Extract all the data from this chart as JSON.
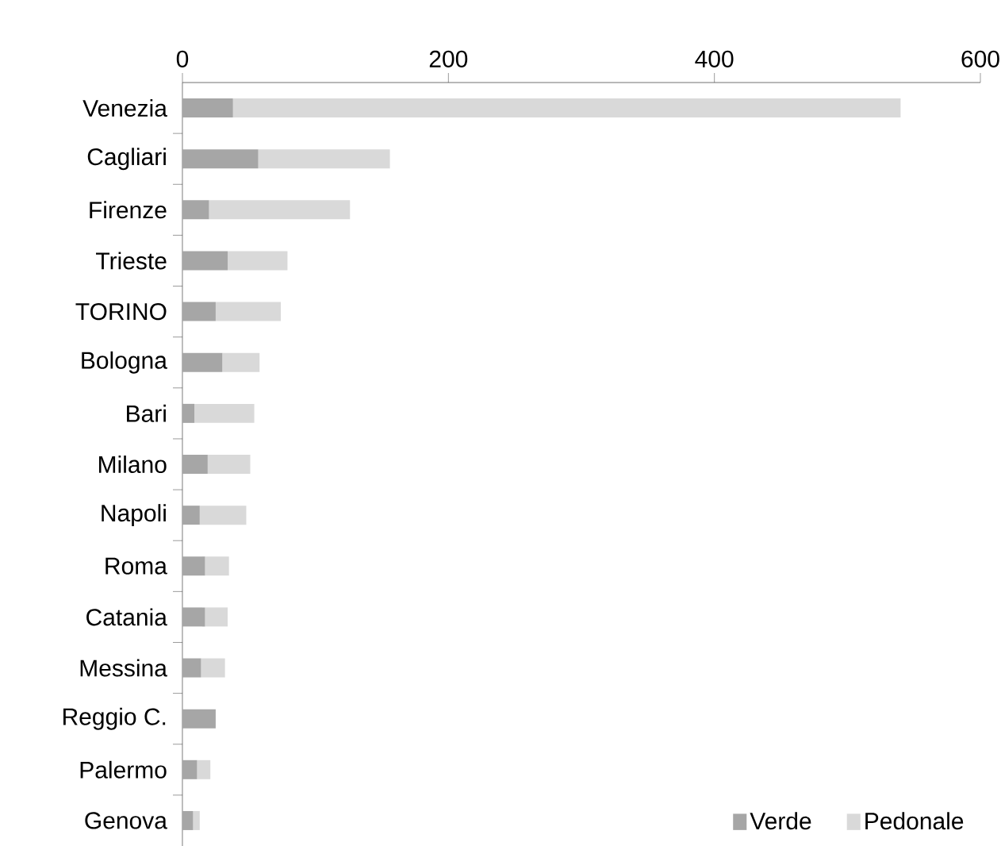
{
  "chart_data": {
    "type": "bar",
    "orientation": "horizontal",
    "stacked": true,
    "categories": [
      "Venezia",
      "Cagliari",
      "Firenze",
      "Trieste",
      "TORINO",
      "Bologna",
      "Bari",
      "Milano",
      "Napoli",
      "Roma",
      "Catania",
      "Messina",
      "Reggio C.",
      "Palermo",
      "Genova"
    ],
    "series": [
      {
        "name": "Verde",
        "color": "#a6a6a6",
        "values": [
          38,
          57,
          20,
          34,
          25,
          30,
          9,
          19,
          13,
          17,
          17,
          14,
          25,
          11,
          8
        ]
      },
      {
        "name": "Pedonale",
        "color": "#d9d9d9",
        "values": [
          502,
          99,
          106,
          45,
          49,
          28,
          45,
          32,
          35,
          18,
          17,
          18,
          0,
          10,
          5
        ]
      }
    ],
    "xlim": [
      0,
      600
    ],
    "xticks": [
      0,
      200,
      400,
      600
    ],
    "legend": "bottom right"
  }
}
